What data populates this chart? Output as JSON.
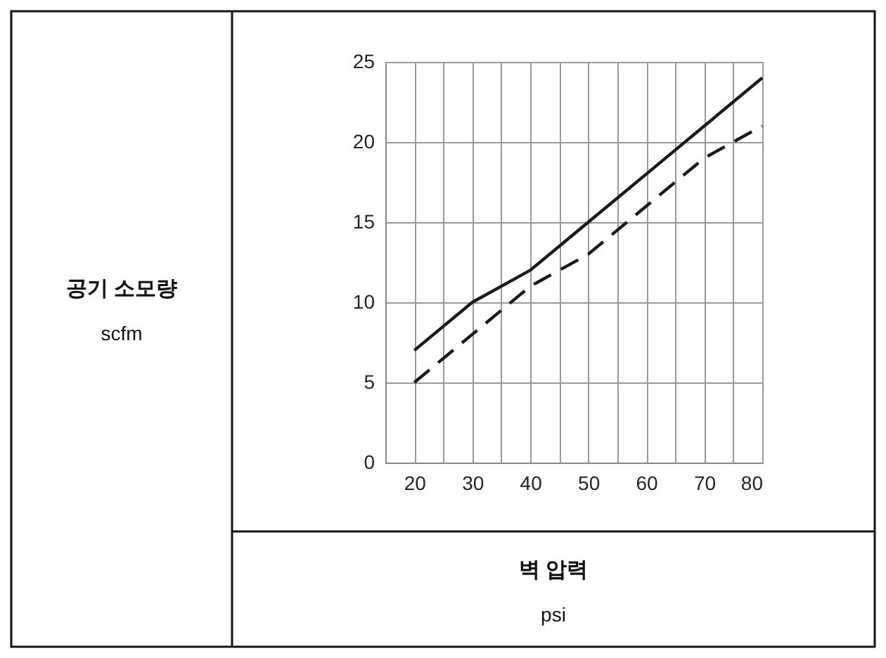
{
  "chart_data": {
    "type": "line",
    "xlabel": "벽 압력\npsi",
    "annotations": [
      "공기 소모량\nscfm"
    ],
    "x": [
      20,
      30,
      40,
      50,
      60,
      70,
      80
    ],
    "series": [
      {
        "color": "#1a1a1a",
        "line_style": "solid",
        "values": [
          7,
          10,
          12,
          15,
          18,
          21,
          24
        ]
      },
      {
        "color": "#1a1a1a",
        "line_style": "dashed",
        "values": [
          5,
          8,
          11,
          13,
          16,
          19,
          21
        ]
      }
    ],
    "xlim": [
      15,
      80
    ],
    "ylim": [
      0,
      25
    ],
    "xticks": [
      20,
      {
        "value": 25,
        "label": null
      },
      30,
      {
        "value": 35,
        "label": null
      },
      40,
      {
        "value": 45,
        "label": null
      },
      50,
      {
        "value": 55,
        "label": null
      },
      60,
      {
        "value": 65,
        "label": null
      },
      70,
      {
        "value": 75,
        "label": null
      },
      80
    ],
    "yticks": [
      0,
      5,
      10,
      15,
      20,
      25
    ],
    "grid": true,
    "marker": "none"
  }
}
